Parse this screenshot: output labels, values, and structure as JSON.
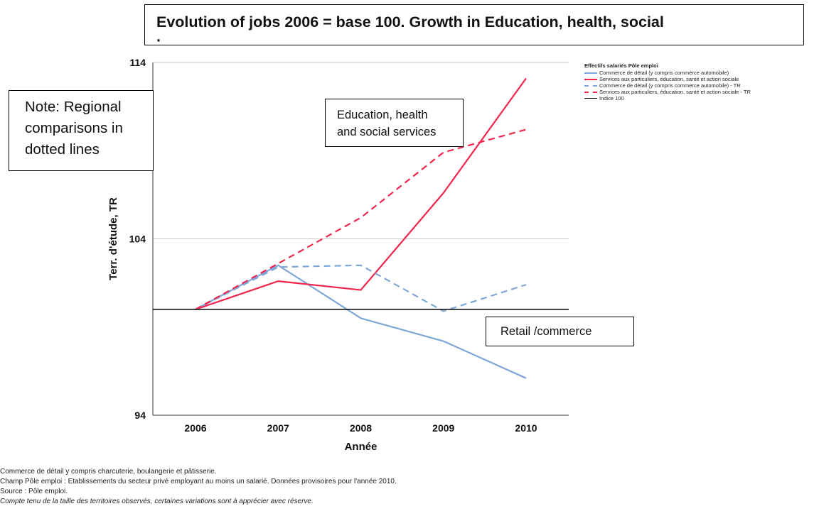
{
  "title_line1": "Evolution of jobs 2006 = base 100. Growth in Education, health, social",
  "title_line2": "·",
  "note_box": {
    "lines": [
      "Note: Regional",
      "comparisons in",
      "dotted lines"
    ]
  },
  "edu_box": {
    "lines": [
      "Education, health",
      "and social services"
    ]
  },
  "retail_box": {
    "text": "Retail /commerce"
  },
  "legend": {
    "title": "Effectifs salariés Pôle emploi",
    "placement": "top-right, outside plot",
    "items": [
      {
        "label": "Commerce de détail (y compris commerce automobile)",
        "color": "#7ea6d8",
        "style": "solid"
      },
      {
        "label": "Services aux particuliers, éducation, santé et action sociale",
        "color": "#f0254d",
        "style": "solid"
      },
      {
        "label": "Commerce de détail (y compris commerce automobile) - TR",
        "color": "#7ea6d8",
        "style": "dashed"
      },
      {
        "label": "Services aux particuliers, éducation, santé et action sociale - TR",
        "color": "#f0254d",
        "style": "dashed"
      },
      {
        "label": "Indice 100",
        "color": "#000000",
        "style": "solid"
      }
    ]
  },
  "footnotes": [
    "Commerce de détail y compris charcuterie, boulangerie et pâtisserie.",
    "Champ Pôle emploi : Etablissements du secteur privé employant au moins un salarié. Données provisoires pour l'année 2010.",
    "Source : Pôle emploi.",
    "Compte tenu de la taille des territoires observés, certaines variations sont à apprécier avec réserve."
  ],
  "chart_data": {
    "type": "line",
    "xlabel": "Année",
    "ylabel": "Terr. d'étude, TR",
    "categories": [
      "2006",
      "2007",
      "2008",
      "2009",
      "2010"
    ],
    "ylim": [
      94,
      114
    ],
    "yticks": [
      94,
      104,
      114
    ],
    "grid": "horizontal",
    "series": [
      {
        "name": "Commerce de détail (y compris commerce automobile)",
        "color": "#7ea6d8",
        "dash": false,
        "values": [
          100,
          102.5,
          99.5,
          98.2,
          96.1
        ]
      },
      {
        "name": "Services aux particuliers, éducation, santé et action sociale",
        "color": "#f0254d",
        "dash": false,
        "values": [
          100,
          101.6,
          101.1,
          106.6,
          113.1
        ]
      },
      {
        "name": "Commerce de détail (y compris commerce automobile) - TR",
        "color": "#7ea6d8",
        "dash": true,
        "values": [
          100,
          102.4,
          102.5,
          99.9,
          101.4
        ]
      },
      {
        "name": "Services aux particuliers, éducation, santé et action sociale - TR",
        "color": "#f0254d",
        "dash": true,
        "values": [
          100,
          102.6,
          105.2,
          108.9,
          110.2
        ]
      },
      {
        "name": "Indice 100",
        "color": "#000000",
        "dash": false,
        "values": [
          100,
          100,
          100,
          100,
          100
        ]
      }
    ]
  }
}
